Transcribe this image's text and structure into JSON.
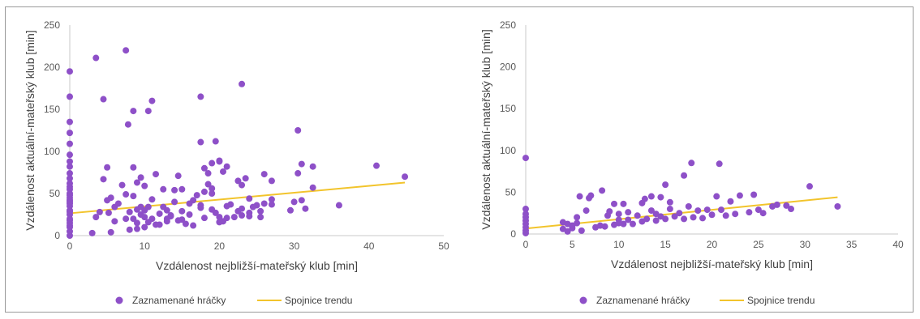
{
  "colors": {
    "scatter": "#8e50c8",
    "trend": "#f2c42c",
    "axis": "#c8c8c8",
    "text": "#595959"
  },
  "chart_data": [
    {
      "type": "scatter",
      "xlabel": "Vzdálenost nejbližší-mateřský klub [min]",
      "ylabel": "Vzdálenost aktuální-mateřský klub [min]",
      "xlim": [
        0,
        50
      ],
      "ylim": [
        0,
        250
      ],
      "x_ticks": [
        "0",
        "10",
        "20",
        "30",
        "40",
        "50"
      ],
      "y_ticks": [
        "0",
        "50",
        "100",
        "150",
        "200",
        "250"
      ],
      "grid": false,
      "legend": "bottom",
      "series": [
        {
          "name": "Zaznamenané hráčky",
          "points": [
            [
              0,
              0
            ],
            [
              0,
              5
            ],
            [
              0,
              10
            ],
            [
              0,
              12
            ],
            [
              0,
              15
            ],
            [
              0,
              18
            ],
            [
              0,
              20
            ],
            [
              0,
              25
            ],
            [
              0,
              28
            ],
            [
              0,
              30
            ],
            [
              0,
              35
            ],
            [
              0,
              38
            ],
            [
              0,
              40
            ],
            [
              0,
              42
            ],
            [
              0,
              45
            ],
            [
              0,
              48
            ],
            [
              0,
              50
            ],
            [
              0,
              55
            ],
            [
              0,
              58
            ],
            [
              0,
              62
            ],
            [
              0,
              68
            ],
            [
              0,
              74
            ],
            [
              0,
              82
            ],
            [
              0,
              88
            ],
            [
              0,
              96
            ],
            [
              0,
              109
            ],
            [
              0,
              122
            ],
            [
              0,
              135
            ],
            [
              0,
              165
            ],
            [
              0,
              195
            ],
            [
              3.5,
              211
            ],
            [
              7.5,
              220
            ],
            [
              4.5,
              162
            ],
            [
              7.8,
              132
            ],
            [
              8.5,
              148
            ],
            [
              10.5,
              148
            ],
            [
              11,
              160
            ],
            [
              23,
              180
            ],
            [
              17.5,
              165
            ],
            [
              3,
              3
            ],
            [
              3.5,
              22
            ],
            [
              4,
              28
            ],
            [
              4.5,
              67
            ],
            [
              5,
              42
            ],
            [
              5,
              81
            ],
            [
              5.2,
              27
            ],
            [
              5.5,
              45
            ],
            [
              5.5,
              4
            ],
            [
              6,
              17
            ],
            [
              6,
              34
            ],
            [
              6.5,
              38
            ],
            [
              7,
              60
            ],
            [
              7.5,
              20
            ],
            [
              7.5,
              49
            ],
            [
              8,
              28
            ],
            [
              8,
              7
            ],
            [
              8.5,
              81
            ],
            [
              8.5,
              20
            ],
            [
              8.5,
              47
            ],
            [
              9,
              15
            ],
            [
              9,
              31
            ],
            [
              9,
              63
            ],
            [
              9,
              8
            ],
            [
              9.5,
              25
            ],
            [
              9.5,
              34
            ],
            [
              9.5,
              69
            ],
            [
              10,
              10
            ],
            [
              10,
              22
            ],
            [
              10,
              30
            ],
            [
              10,
              59
            ],
            [
              10.5,
              34
            ],
            [
              10.5,
              16
            ],
            [
              11,
              20
            ],
            [
              11,
              43
            ],
            [
              11.5,
              73
            ],
            [
              11.5,
              13
            ],
            [
              12,
              26
            ],
            [
              12,
              13
            ],
            [
              12.5,
              34
            ],
            [
              12.5,
              55
            ],
            [
              13,
              17
            ],
            [
              13,
              30
            ],
            [
              13,
              20
            ],
            [
              13.5,
              23
            ],
            [
              13.5,
              24
            ],
            [
              14,
              40
            ],
            [
              14,
              54
            ],
            [
              14.5,
              71
            ],
            [
              14.5,
              18
            ],
            [
              15,
              55
            ],
            [
              15,
              29
            ],
            [
              15,
              19
            ],
            [
              15.5,
              14
            ],
            [
              16,
              25
            ],
            [
              16,
              38
            ],
            [
              16.5,
              42
            ],
            [
              16.5,
              12
            ],
            [
              17,
              48
            ],
            [
              17.5,
              111
            ],
            [
              17.5,
              36
            ],
            [
              17.5,
              33
            ],
            [
              18,
              52
            ],
            [
              18,
              80
            ],
            [
              18,
              21
            ],
            [
              18.5,
              61
            ],
            [
              18.5,
              74
            ],
            [
              19,
              56
            ],
            [
              19,
              31
            ],
            [
              19,
              86
            ],
            [
              19,
              50
            ],
            [
              19.5,
              112
            ],
            [
              19.5,
              27
            ],
            [
              20,
              89
            ],
            [
              20,
              16
            ],
            [
              20,
              88
            ],
            [
              20,
              22
            ],
            [
              20.5,
              76
            ],
            [
              20.5,
              17
            ],
            [
              21,
              82
            ],
            [
              21,
              35
            ],
            [
              21,
              21
            ],
            [
              21.5,
              37
            ],
            [
              22,
              22
            ],
            [
              22.5,
              65
            ],
            [
              22.5,
              29
            ],
            [
              23,
              60
            ],
            [
              23,
              32
            ],
            [
              23,
              24
            ],
            [
              23.5,
              68
            ],
            [
              24,
              27
            ],
            [
              24,
              44
            ],
            [
              24,
              23
            ],
            [
              24.5,
              34
            ],
            [
              25,
              36
            ],
            [
              25.5,
              29
            ],
            [
              25.5,
              22
            ],
            [
              26,
              73
            ],
            [
              26,
              38
            ],
            [
              27,
              65
            ],
            [
              27,
              43
            ],
            [
              27,
              37
            ],
            [
              29.5,
              30
            ],
            [
              30,
              40
            ],
            [
              30.5,
              125
            ],
            [
              30.5,
              74
            ],
            [
              31,
              85
            ],
            [
              31,
              42
            ],
            [
              31.5,
              32
            ],
            [
              32.5,
              82
            ],
            [
              32.5,
              57
            ],
            [
              36,
              36
            ],
            [
              41,
              83
            ],
            [
              44.8,
              70
            ]
          ]
        }
      ],
      "trendline": {
        "name": "Spojnice trendu",
        "x": [
          0,
          44.8
        ],
        "y": [
          26.5,
          63
        ]
      }
    },
    {
      "type": "scatter",
      "xlabel": "Vzdálenost nejbližší-mateřský klub [min]",
      "ylabel": "Vzdálenost aktuální-mateřský klub [min]",
      "xlim": [
        0,
        40
      ],
      "ylim": [
        0,
        250
      ],
      "x_ticks": [
        "0",
        "5",
        "10",
        "15",
        "20",
        "25",
        "30",
        "35",
        "40"
      ],
      "y_ticks": [
        "0",
        "50",
        "100",
        "150",
        "200",
        "250"
      ],
      "grid": false,
      "legend": "bottom",
      "series": [
        {
          "name": "Zaznamenané hráčky",
          "points": [
            [
              0,
              91
            ],
            [
              0,
              30
            ],
            [
              0,
              24
            ],
            [
              0,
              20
            ],
            [
              0,
              16
            ],
            [
              0,
              12
            ],
            [
              0,
              8
            ],
            [
              0,
              4
            ],
            [
              0,
              1
            ],
            [
              4,
              14
            ],
            [
              4,
              6
            ],
            [
              4.5,
              3
            ],
            [
              4.5,
              12
            ],
            [
              5,
              10
            ],
            [
              5,
              7
            ],
            [
              5.5,
              13
            ],
            [
              5.5,
              20
            ],
            [
              5.8,
              45
            ],
            [
              6,
              4
            ],
            [
              6.5,
              28
            ],
            [
              6.8,
              43
            ],
            [
              7,
              46
            ],
            [
              7.5,
              8
            ],
            [
              8,
              10
            ],
            [
              8.2,
              52
            ],
            [
              8.5,
              9
            ],
            [
              8.8,
              22
            ],
            [
              9,
              27
            ],
            [
              9.5,
              11
            ],
            [
              9.5,
              36
            ],
            [
              10,
              13
            ],
            [
              10,
              17
            ],
            [
              10,
              24
            ],
            [
              10.5,
              36
            ],
            [
              10.5,
              12
            ],
            [
              11,
              26
            ],
            [
              11,
              17
            ],
            [
              11.5,
              12
            ],
            [
              12,
              22
            ],
            [
              12.5,
              37
            ],
            [
              12.5,
              15
            ],
            [
              12.8,
              42
            ],
            [
              13,
              18
            ],
            [
              13.5,
              28
            ],
            [
              13.5,
              45
            ],
            [
              14,
              16
            ],
            [
              14,
              24
            ],
            [
              14.5,
              44
            ],
            [
              14.5,
              21
            ],
            [
              15,
              59
            ],
            [
              15,
              18
            ],
            [
              15.5,
              30
            ],
            [
              15.5,
              38
            ],
            [
              16,
              21
            ],
            [
              16.5,
              25
            ],
            [
              17,
              70
            ],
            [
              17,
              18
            ],
            [
              17.5,
              33
            ],
            [
              17.8,
              85
            ],
            [
              18,
              20
            ],
            [
              18.5,
              28
            ],
            [
              19,
              19
            ],
            [
              19.5,
              29
            ],
            [
              20,
              23
            ],
            [
              20.5,
              45
            ],
            [
              20.8,
              84
            ],
            [
              21,
              29
            ],
            [
              21.5,
              22
            ],
            [
              22,
              39
            ],
            [
              22.5,
              24
            ],
            [
              23,
              46
            ],
            [
              24,
              26
            ],
            [
              24.5,
              47
            ],
            [
              25,
              29
            ],
            [
              25.5,
              25
            ],
            [
              26.5,
              33
            ],
            [
              27,
              35
            ],
            [
              28,
              34
            ],
            [
              28.5,
              30
            ],
            [
              30.5,
              57
            ],
            [
              33.5,
              33
            ]
          ]
        }
      ],
      "trendline": {
        "name": "Spojnice trendu",
        "x": [
          0,
          33.5
        ],
        "y": [
          6.5,
          44
        ]
      }
    }
  ]
}
